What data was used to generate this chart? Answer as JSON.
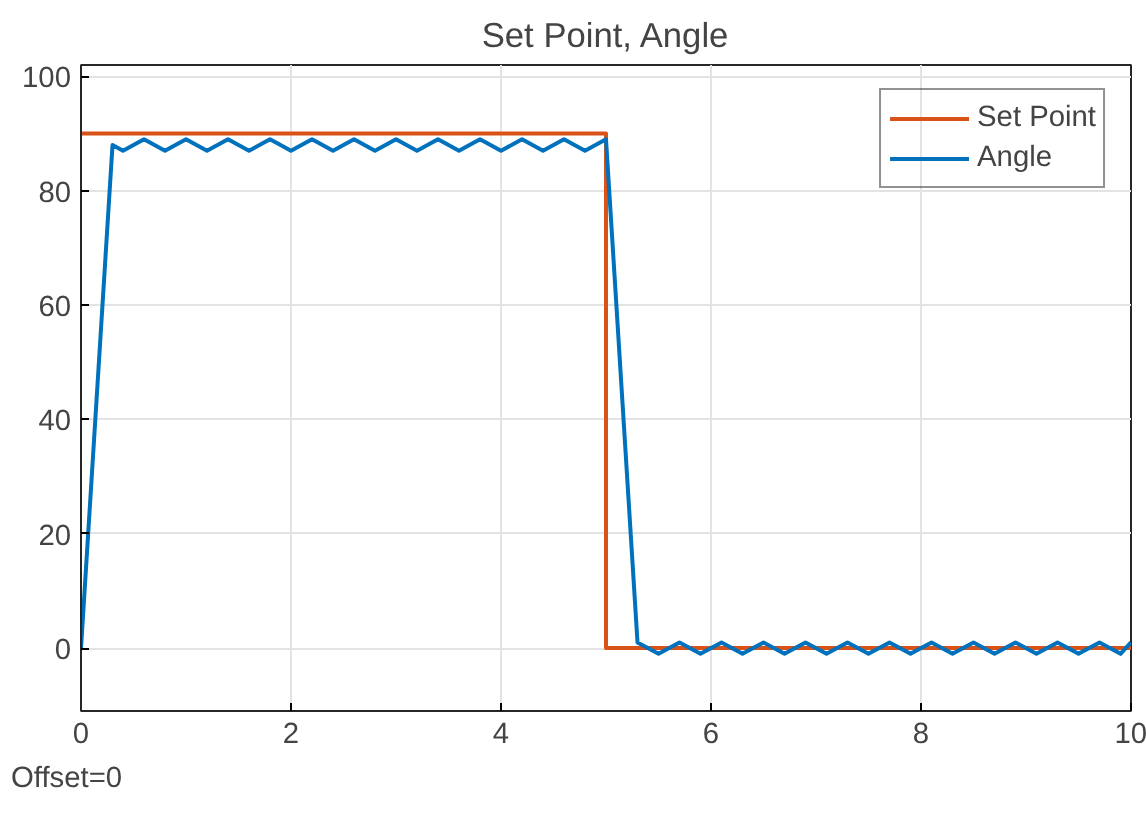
{
  "chart_data": {
    "type": "line",
    "title": "Set Point, Angle",
    "xlim": [
      0,
      10
    ],
    "xticks": [
      0,
      2,
      4,
      6,
      8,
      10
    ],
    "ylim": [
      -11,
      102
    ],
    "yticks": [
      0,
      20,
      40,
      60,
      80,
      100
    ],
    "grid": true,
    "legend": "top right",
    "line_style": "solid",
    "annotations": [
      "Offset=0"
    ],
    "series": [
      {
        "name": "Set Point",
        "color": "#d95319",
        "x": [
          0,
          5,
          5,
          10
        ],
        "values": [
          90,
          90,
          0,
          0
        ]
      },
      {
        "name": "Angle",
        "color": "#0072bd",
        "x": [
          0,
          0.3,
          0.4,
          0.6,
          0.8,
          1.0,
          1.2,
          1.4,
          1.6,
          1.8,
          2.0,
          2.2,
          2.4,
          2.6,
          2.8,
          3.0,
          3.2,
          3.4,
          3.6,
          3.8,
          4.0,
          4.2,
          4.4,
          4.6,
          4.8,
          5.0,
          5.3,
          5.5,
          5.7,
          5.9,
          6.1,
          6.3,
          6.5,
          6.7,
          6.9,
          7.1,
          7.3,
          7.5,
          7.7,
          7.9,
          8.1,
          8.3,
          8.5,
          8.7,
          8.9,
          9.1,
          9.3,
          9.5,
          9.7,
          9.9,
          10.0
        ],
        "values": [
          0,
          88,
          87,
          89,
          87,
          89,
          87,
          89,
          87,
          89,
          87,
          89,
          87,
          89,
          87,
          89,
          87,
          89,
          87,
          89,
          87,
          89,
          87,
          89,
          87,
          89,
          1,
          -1,
          1,
          -1,
          1,
          -1,
          1,
          -1,
          1,
          -1,
          1,
          -1,
          1,
          -1,
          1,
          -1,
          1,
          -1,
          1,
          -1,
          1,
          -1,
          1,
          -1,
          1
        ]
      }
    ]
  }
}
